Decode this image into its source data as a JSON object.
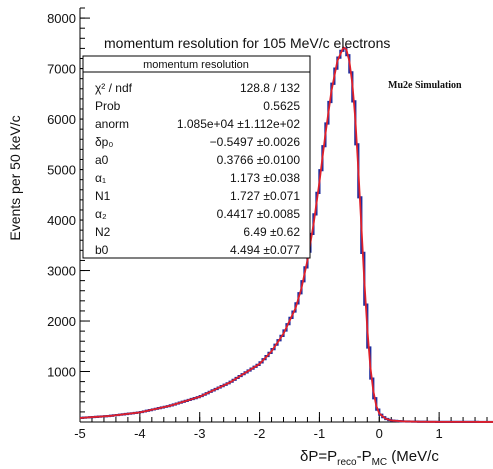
{
  "chart_data": {
    "type": "line",
    "title": "momentum resolution for 105 MeV/c electrons",
    "annotation": "Mu2e Simulation",
    "ylabel": "Events per 50 keV/c",
    "xlabel": {
      "base": "δP=P",
      "sub1": "reco",
      "mid": "-P",
      "sub2": "MC",
      "unit": " (MeV/c"
    },
    "xlim": [
      -5,
      1.9
    ],
    "ylim": [
      0,
      8200
    ],
    "x_ticks": [
      -5,
      -4,
      -3,
      -2,
      -1,
      0,
      1
    ],
    "x_tick_labels": [
      "-5",
      "-4",
      "-3",
      "-2",
      "-1",
      "0",
      "1"
    ],
    "y_ticks": [
      1000,
      2000,
      3000,
      4000,
      5000,
      6000,
      7000,
      8000
    ],
    "y_tick_labels": [
      "1000",
      "2000",
      "3000",
      "4000",
      "5000",
      "6000",
      "7000",
      "8000"
    ],
    "grid": false,
    "colors": {
      "histogram": "#1f2d9e",
      "fit": "#e0202a",
      "axis": "#000000"
    },
    "series": [
      {
        "kind": "histogram",
        "x": [
          -5.0,
          -4.5,
          -4.0,
          -3.5,
          -3.0,
          -2.5,
          -2.0,
          -1.8,
          -1.6,
          -1.4,
          -1.3,
          -1.2,
          -1.1,
          -1.0,
          -0.9,
          -0.8,
          -0.7,
          -0.6,
          -0.55,
          -0.5,
          -0.45,
          -0.4,
          -0.35,
          -0.3,
          -0.25,
          -0.2,
          -0.15,
          -0.1,
          -0.05,
          0.0,
          0.1,
          0.2,
          0.4,
          0.7,
          1.0,
          1.5,
          1.9
        ],
        "y": [
          80,
          120,
          190,
          320,
          500,
          780,
          1150,
          1400,
          1750,
          2250,
          2650,
          3200,
          3900,
          4750,
          5700,
          6550,
          7150,
          7420,
          7380,
          7150,
          6700,
          6000,
          5000,
          3900,
          2800,
          1850,
          1100,
          620,
          320,
          170,
          70,
          30,
          12,
          5,
          3,
          2,
          1
        ]
      },
      {
        "kind": "fit",
        "x": [
          -5.0,
          -4.5,
          -4.0,
          -3.5,
          -3.0,
          -2.5,
          -2.0,
          -1.8,
          -1.6,
          -1.4,
          -1.3,
          -1.2,
          -1.1,
          -1.0,
          -0.9,
          -0.8,
          -0.7,
          -0.6,
          -0.55,
          -0.5,
          -0.45,
          -0.4,
          -0.35,
          -0.3,
          -0.25,
          -0.2,
          -0.15,
          -0.1,
          -0.05,
          0.0,
          0.1,
          0.2,
          0.4,
          0.7,
          1.0,
          1.5,
          1.9
        ],
        "y": [
          80,
          120,
          190,
          320,
          500,
          780,
          1150,
          1400,
          1750,
          2250,
          2650,
          3200,
          3900,
          4750,
          5700,
          6550,
          7150,
          7420,
          7380,
          7150,
          6700,
          6000,
          5000,
          3900,
          2800,
          1850,
          1100,
          620,
          320,
          170,
          70,
          30,
          12,
          5,
          3,
          2,
          1
        ]
      }
    ],
    "stats_box": {
      "title": "momentum resolution",
      "rows": [
        {
          "name": "χ² / ndf",
          "value": "128.8 / 132"
        },
        {
          "name": "Prob",
          "value": "0.5625"
        },
        {
          "name": "anorm",
          "value": "1.085e+04 ±1.112e+02"
        },
        {
          "name": "δp₀",
          "value": "−0.5497 ±0.0026"
        },
        {
          "name": "a0",
          "value": "0.3766 ±0.0100"
        },
        {
          "name": "α₁",
          "value": "1.173 ±0.038"
        },
        {
          "name": "N1",
          "value": "1.727 ±0.071"
        },
        {
          "name": "α₂",
          "value": "0.4417 ±0.0085"
        },
        {
          "name": "N2",
          "value": "6.49 ±0.62"
        },
        {
          "name": "b0",
          "value": "4.494 ±0.077"
        }
      ]
    }
  }
}
